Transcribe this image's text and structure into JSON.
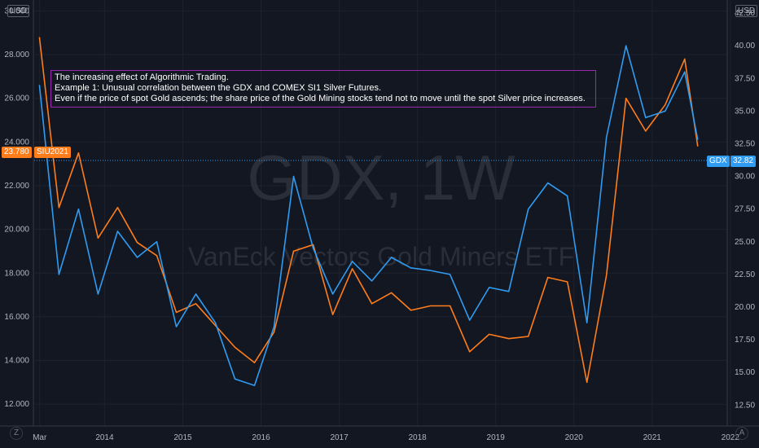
{
  "watermark": {
    "symbol": "GDX, 1W",
    "name": "VanEck Vectors Gold Miners ETF"
  },
  "annotation": {
    "line1": "The increasing effect of Algorithmic Trading.",
    "line2": "Example 1: Unusual correlation between the GDX and COMEX SI1 Silver Futures.",
    "line3": "Even if the price of spot Gold ascends; the share price of the Gold Mining stocks tend not to move until the spot Silver price increases."
  },
  "left_axis": {
    "unit": "USD",
    "ticks": [
      "30.000",
      "28.000",
      "26.000",
      "24.000",
      "22.000",
      "20.000",
      "18.000",
      "16.000",
      "14.000",
      "12.000"
    ],
    "last_value": "23.780",
    "series_label": "SIU2021"
  },
  "right_axis": {
    "unit": "USD",
    "ticks": [
      "42.50",
      "40.00",
      "37.50",
      "35.00",
      "32.50",
      "30.00",
      "27.50",
      "25.00",
      "22.50",
      "20.00",
      "17.50",
      "15.00",
      "12.50"
    ],
    "last_value": "32.82",
    "series_label": "GDX"
  },
  "x_axis": {
    "ticks": [
      "Mar",
      "2014",
      "2015",
      "2016",
      "2017",
      "2018",
      "2019",
      "2020",
      "2021",
      "2022"
    ]
  },
  "colors": {
    "background": "#131722",
    "silver": "#ff7d1a",
    "gdx": "#2f9cf2",
    "annotation_border": "#9c27b0"
  },
  "corner_icons": {
    "left": "Z",
    "right": "A"
  },
  "chart_data": {
    "type": "line",
    "x": [
      "2013-03",
      "2013-06",
      "2013-09",
      "2013-12",
      "2014-03",
      "2014-06",
      "2014-09",
      "2014-12",
      "2015-03",
      "2015-06",
      "2015-09",
      "2015-12",
      "2016-03",
      "2016-06",
      "2016-09",
      "2016-12",
      "2017-03",
      "2017-06",
      "2017-09",
      "2017-12",
      "2018-03",
      "2018-06",
      "2018-09",
      "2018-12",
      "2019-03",
      "2019-06",
      "2019-09",
      "2019-12",
      "2020-03",
      "2020-06",
      "2020-09",
      "2020-12",
      "2021-03",
      "2021-06",
      "2021-08"
    ],
    "series": [
      {
        "name": "SIU2021",
        "axis": "left",
        "values": [
          28.8,
          21.0,
          23.5,
          19.6,
          21.0,
          19.4,
          18.8,
          16.2,
          16.6,
          15.6,
          14.6,
          13.9,
          15.3,
          19.0,
          19.3,
          16.1,
          18.2,
          16.6,
          17.1,
          16.3,
          16.5,
          16.5,
          14.4,
          15.2,
          15.0,
          15.1,
          17.8,
          17.6,
          13.0,
          17.9,
          26.0,
          24.5,
          25.7,
          27.8,
          23.8
        ],
        "ylim": [
          11.0,
          30.5
        ]
      },
      {
        "name": "GDX",
        "axis": "right",
        "values": [
          37.0,
          22.5,
          27.5,
          21.0,
          25.8,
          23.8,
          25.0,
          18.5,
          21.0,
          18.8,
          14.5,
          14.0,
          18.5,
          30.0,
          24.5,
          21.0,
          23.5,
          22.0,
          23.8,
          23.0,
          22.8,
          22.5,
          19.0,
          21.5,
          21.2,
          27.5,
          29.5,
          28.5,
          18.8,
          33.0,
          40.0,
          34.5,
          35.0,
          38.0,
          32.8
        ],
        "ylim": [
          10.9,
          43.5
        ]
      }
    ],
    "xlabel": "",
    "ylabel": ""
  }
}
